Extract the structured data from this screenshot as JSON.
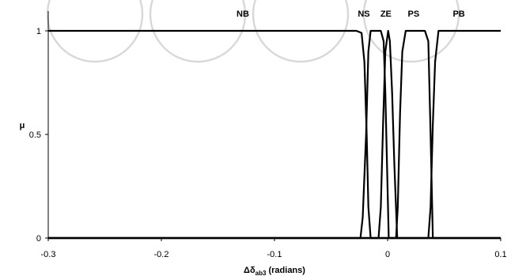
{
  "chart_data": {
    "type": "line",
    "title": "",
    "xlabel_prefix": "Δδ",
    "xlabel_sub": "ab3",
    "xlabel_suffix": " (radians)",
    "ylabel": "μ",
    "xlim": [
      -0.3,
      0.1
    ],
    "ylim": [
      0,
      1
    ],
    "xticks": [
      "-0.3",
      "-0.2",
      "-0.1",
      "0",
      "0.1"
    ],
    "xtick_values": [
      -0.3,
      -0.2,
      -0.1,
      0,
      0.1
    ],
    "yticks": [
      "0",
      "0.5",
      "1"
    ],
    "ytick_values": [
      0,
      0.5,
      1
    ],
    "grid": false,
    "membership_labels": [
      {
        "text": "NB",
        "x": -0.128
      },
      {
        "text": "NS",
        "x": -0.021
      },
      {
        "text": "ZE",
        "x": -0.0015
      },
      {
        "text": "PS",
        "x": 0.023
      },
      {
        "text": "PB",
        "x": 0.063
      }
    ],
    "series": [
      {
        "x": [
          -0.3,
          -0.0275,
          -0.023,
          -0.0205,
          -0.0185,
          -0.017,
          -0.015,
          0.1
        ],
        "y": [
          1,
          1,
          0.99,
          0.85,
          0.5,
          0.15,
          0,
          0
        ]
      },
      {
        "x": [
          -0.3,
          -0.024,
          -0.022,
          -0.019,
          -0.017,
          -0.015,
          -0.012,
          -0.006,
          -0.0035,
          -0.002,
          -0.0005,
          0.001,
          0.1
        ],
        "y": [
          0,
          0,
          0.1,
          0.5,
          0.9,
          1,
          1,
          1,
          0.95,
          0.7,
          0.35,
          0,
          0
        ]
      },
      {
        "x": [
          -0.3,
          -0.008,
          -0.006,
          -0.004,
          -0.002,
          0.0005,
          0.002,
          0.004,
          0.006,
          0.0085,
          0.1
        ],
        "y": [
          0,
          0,
          0.15,
          0.55,
          0.9,
          1,
          0.95,
          0.7,
          0.35,
          0,
          0
        ]
      },
      {
        "x": [
          -0.3,
          0.0075,
          0.009,
          0.011,
          0.013,
          0.016,
          0.02,
          0.033,
          0.036,
          0.038,
          0.04,
          0.1
        ],
        "y": [
          0,
          0,
          0.15,
          0.6,
          0.9,
          1,
          1,
          1,
          0.95,
          0.5,
          0,
          0
        ]
      },
      {
        "x": [
          -0.3,
          0.036,
          0.038,
          0.04,
          0.042,
          0.045,
          0.05,
          0.1
        ],
        "y": [
          0,
          0,
          0.15,
          0.55,
          0.85,
          1,
          1,
          1
        ]
      }
    ]
  }
}
